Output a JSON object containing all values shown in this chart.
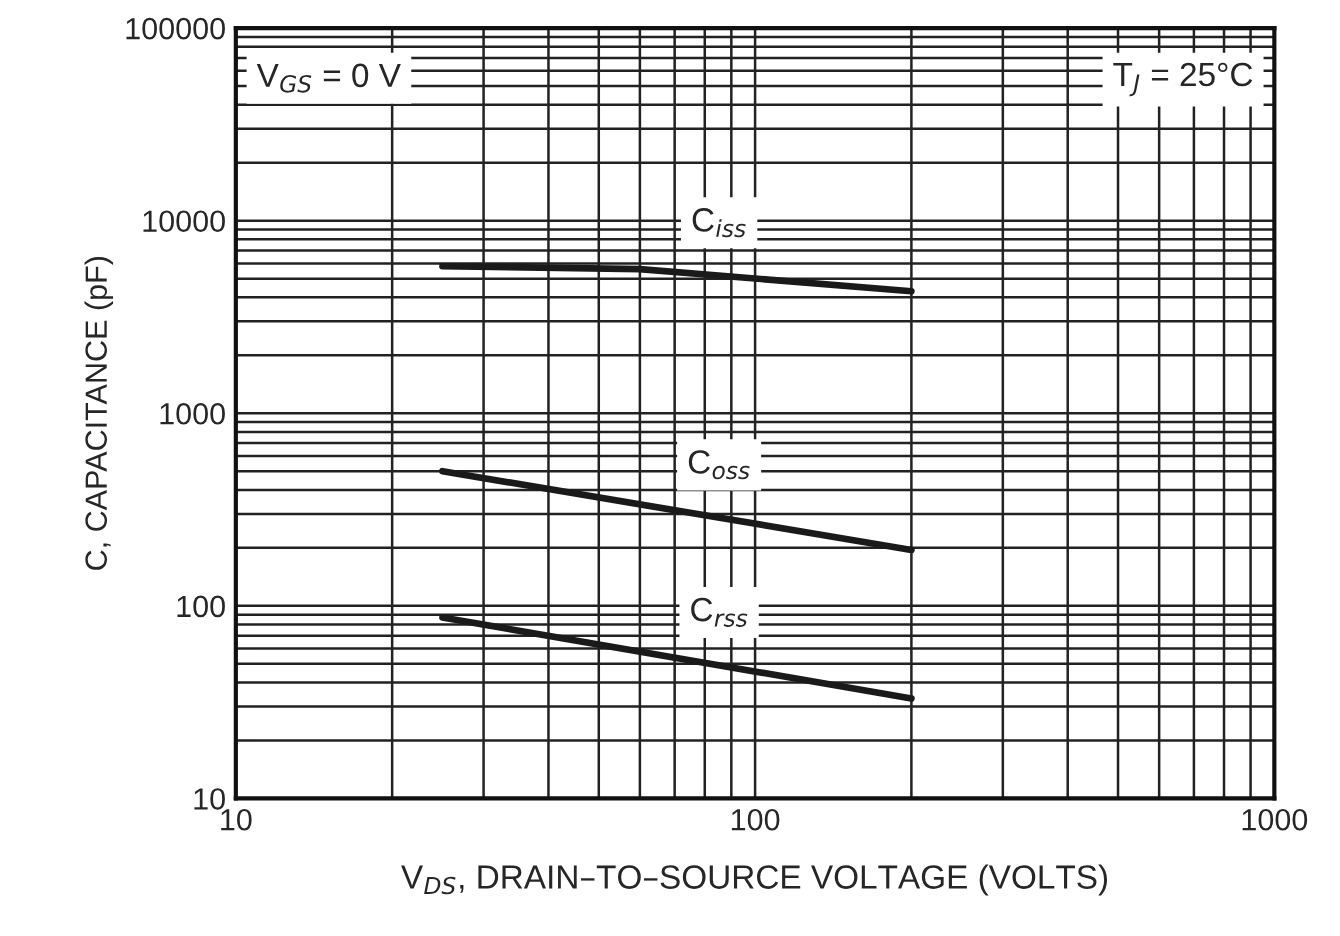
{
  "chart_data": {
    "type": "line",
    "xlabel": "V$_{DS}$, DRAIN–TO–SOURCE VOLTAGE (VOLTS)",
    "ylabel": "C, CAPACITANCE (pF)",
    "log": "xy",
    "xlim": [
      10,
      1000
    ],
    "ylim": [
      10,
      100000
    ],
    "xticks": [
      10,
      100,
      1000
    ],
    "yticks": [
      10,
      100,
      1000,
      10000,
      100000
    ],
    "grid": true,
    "legend": false,
    "marker": "none",
    "line_style": "solid",
    "series": [
      {
        "name": "C$_{iss}$",
        "color": "#1a1a1a",
        "x": [
          25,
          60,
          200
        ],
        "values": [
          5800,
          5600,
          4300
        ]
      },
      {
        "name": "C$_{oss}$",
        "color": "#1a1a1a",
        "x": [
          25,
          200
        ],
        "values": [
          500,
          195
        ]
      },
      {
        "name": "C$_{rss}$",
        "color": "#1a1a1a",
        "x": [
          25,
          200
        ],
        "values": [
          87,
          33
        ]
      }
    ],
    "annotations": [
      "V$_{GS}$ = 0 V",
      "T$_{J}$ = 25°C"
    ]
  }
}
